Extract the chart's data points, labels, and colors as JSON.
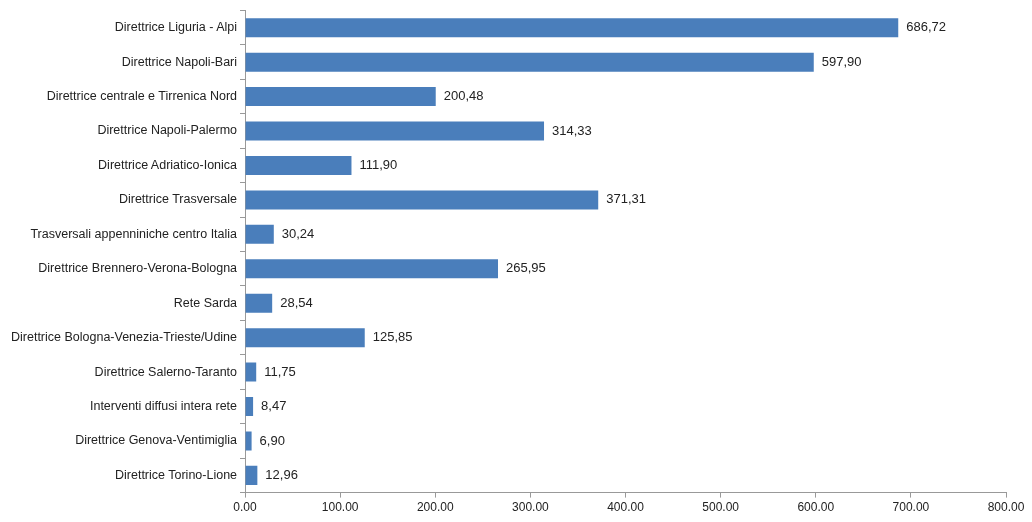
{
  "chart_data": {
    "type": "bar",
    "orientation": "horizontal",
    "categories": [
      "Direttrice Liguria - Alpi",
      "Direttrice Napoli-Bari",
      "Direttrice centrale e Tirrenica Nord",
      "Direttrice Napoli-Palermo",
      "Direttrice Adriatico-Ionica",
      "Direttrice Trasversale",
      "Trasversali appenniniche centro Italia",
      "Direttrice Brennero-Verona-Bologna",
      "Rete Sarda",
      "Direttrice Bologna-Venezia-Trieste/Udine",
      "Direttrice Salerno-Taranto",
      "Interventi diffusi intera rete",
      "Direttrice Genova-Ventimiglia",
      "Direttrice Torino-Lione"
    ],
    "values": [
      686.72,
      597.9,
      200.48,
      314.33,
      111.9,
      371.31,
      30.24,
      265.95,
      28.54,
      125.85,
      11.75,
      8.47,
      6.9,
      12.96
    ],
    "value_labels": [
      "686,72",
      "597,90",
      "200,48",
      "314,33",
      "111,90",
      "371,31",
      "30,24",
      "265,95",
      "28,54",
      "125,85",
      "11,75",
      "8,47",
      "6,90",
      "12,96"
    ],
    "color": "#4a7ebb",
    "xlim": [
      0,
      800
    ],
    "xticks": [
      {
        "value": 0,
        "label": "0.00"
      },
      {
        "value": 100,
        "label": "100.00"
      },
      {
        "value": 200,
        "label": "200.00"
      },
      {
        "value": 300,
        "label": "300.00"
      },
      {
        "value": 400,
        "label": "400.00"
      },
      {
        "value": 500,
        "label": "500.00"
      },
      {
        "value": 600,
        "label": "600.00"
      },
      {
        "value": 700,
        "label": "700.00"
      },
      {
        "value": 800,
        "label": "800.00"
      }
    ],
    "grid": false,
    "legend": false
  }
}
